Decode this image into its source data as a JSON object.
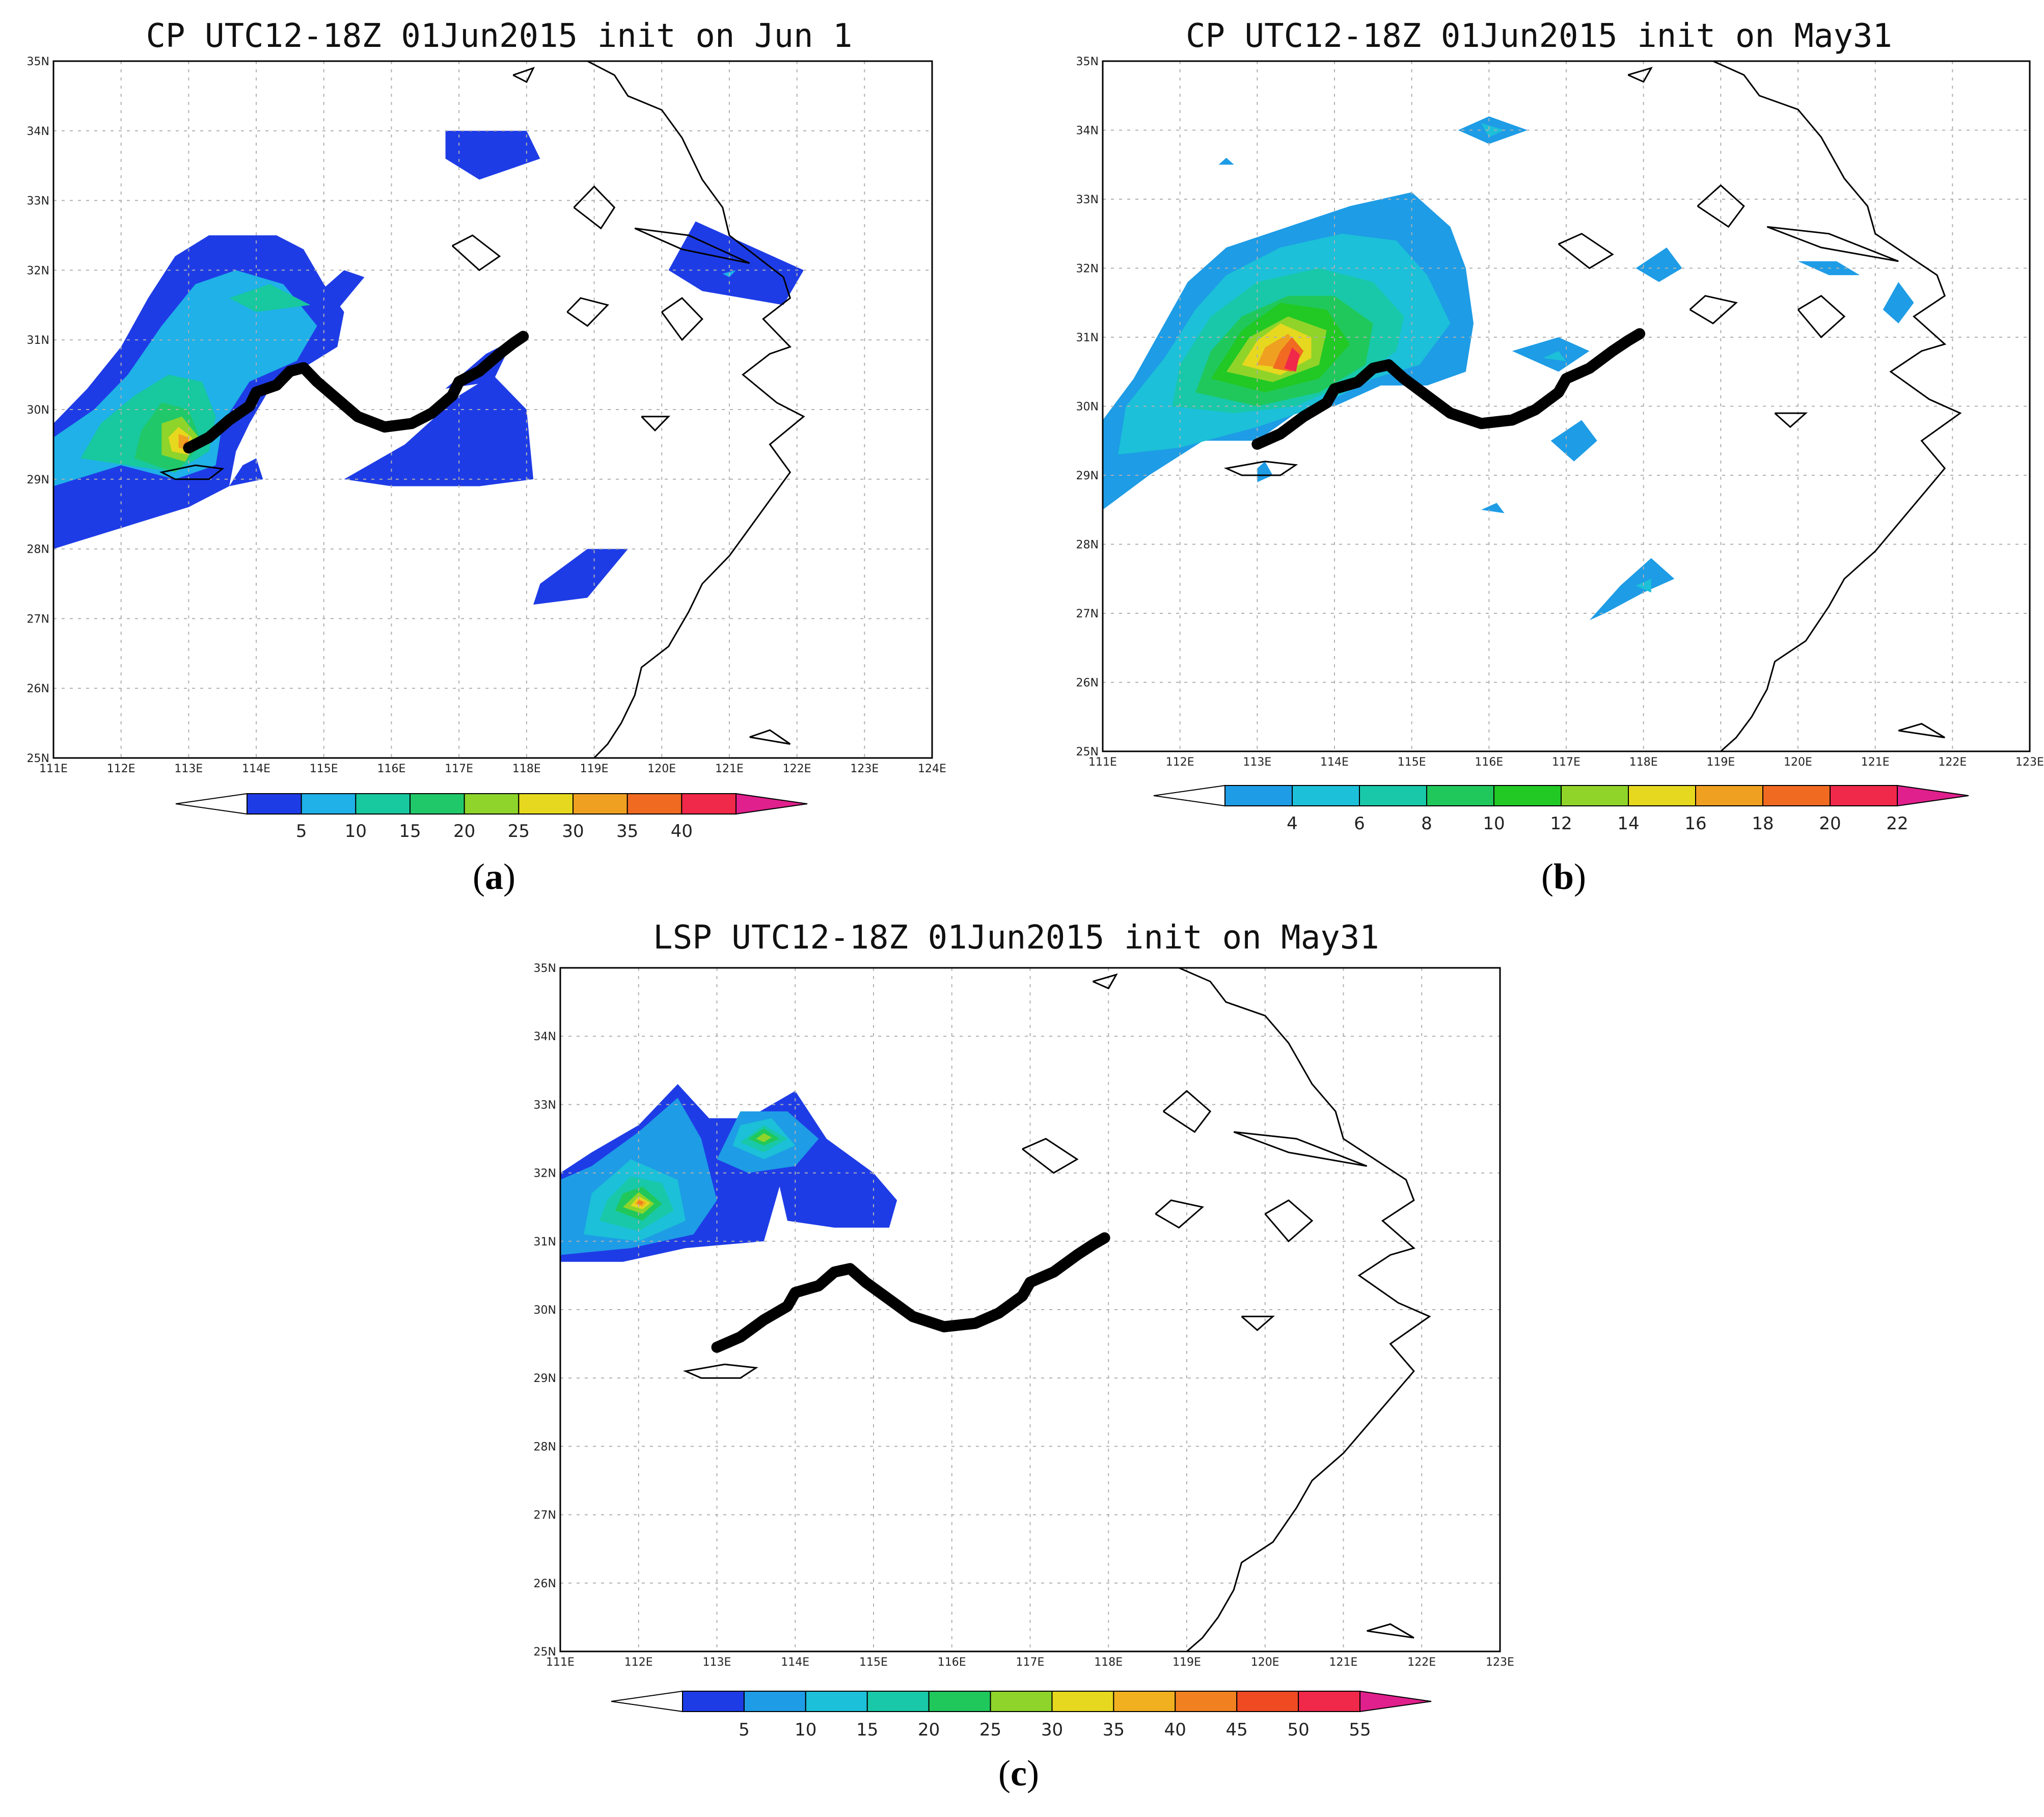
{
  "panels": [
    {
      "id": "a",
      "title": "CP UTC12-18Z 01Jun2015 init on Jun 1",
      "caption": "a",
      "lon_range": [
        111,
        124
      ],
      "lat_range": [
        25,
        35
      ],
      "lon_ticks": [
        "111E",
        "112E",
        "113E",
        "114E",
        "115E",
        "116E",
        "117E",
        "118E",
        "119E",
        "120E",
        "121E",
        "122E",
        "123E",
        "124E"
      ],
      "lat_ticks": [
        "25N",
        "26N",
        "27N",
        "28N",
        "29N",
        "30N",
        "31N",
        "32N",
        "33N",
        "34N",
        "35N"
      ],
      "colorbar_levels": [
        "5",
        "10",
        "15",
        "20",
        "25",
        "30",
        "35",
        "40"
      ],
      "colorbar_colors": [
        "#1e3ce6",
        "#1fb1e8",
        "#18c89e",
        "#21c86a",
        "#8ed42a",
        "#e6d81e",
        "#f0a020",
        "#f06a22",
        "#f0284a"
      ]
    },
    {
      "id": "b",
      "title": "CP UTC12-18Z 01Jun2015 init on May31",
      "caption": "b",
      "lon_range": [
        111,
        123
      ],
      "lat_range": [
        25,
        35
      ],
      "lon_ticks": [
        "111E",
        "112E",
        "113E",
        "114E",
        "115E",
        "116E",
        "117E",
        "118E",
        "119E",
        "120E",
        "121E",
        "122E",
        "123E"
      ],
      "lat_ticks": [
        "25N",
        "26N",
        "27N",
        "28N",
        "29N",
        "30N",
        "31N",
        "32N",
        "33N",
        "34N",
        "35N"
      ],
      "colorbar_levels": [
        "4",
        "6",
        "8",
        "10",
        "12",
        "14",
        "16",
        "18",
        "20",
        "22"
      ],
      "colorbar_colors": [
        "#1e9ce6",
        "#1cc0d8",
        "#18c8a8",
        "#20c85c",
        "#22c824",
        "#90d42a",
        "#e6d81e",
        "#f0a020",
        "#f06a22",
        "#f0284a"
      ]
    },
    {
      "id": "c",
      "title": "LSP UTC12-18Z 01Jun2015 init on May31",
      "caption": "c",
      "lon_range": [
        111,
        123
      ],
      "lat_range": [
        25,
        35
      ],
      "lon_ticks": [
        "111E",
        "112E",
        "113E",
        "114E",
        "115E",
        "116E",
        "117E",
        "118E",
        "119E",
        "120E",
        "121E",
        "122E",
        "123E"
      ],
      "lat_ticks": [
        "25N",
        "26N",
        "27N",
        "28N",
        "29N",
        "30N",
        "31N",
        "32N",
        "33N",
        "34N",
        "35N"
      ],
      "colorbar_levels": [
        "5",
        "10",
        "15",
        "20",
        "25",
        "30",
        "35",
        "40",
        "45",
        "50",
        "55"
      ],
      "colorbar_colors": [
        "#1e3ce6",
        "#1e9ce6",
        "#1cc0d8",
        "#18c8a8",
        "#20c85c",
        "#8ed42a",
        "#e6d81e",
        "#f0b020",
        "#f08020",
        "#f04a22",
        "#f0284a"
      ]
    }
  ],
  "palette": {
    "under": "#ffffff",
    "over": "#e0208c",
    "river": "#000000",
    "coast": "#000000",
    "grid": "#b0b0b0"
  }
}
